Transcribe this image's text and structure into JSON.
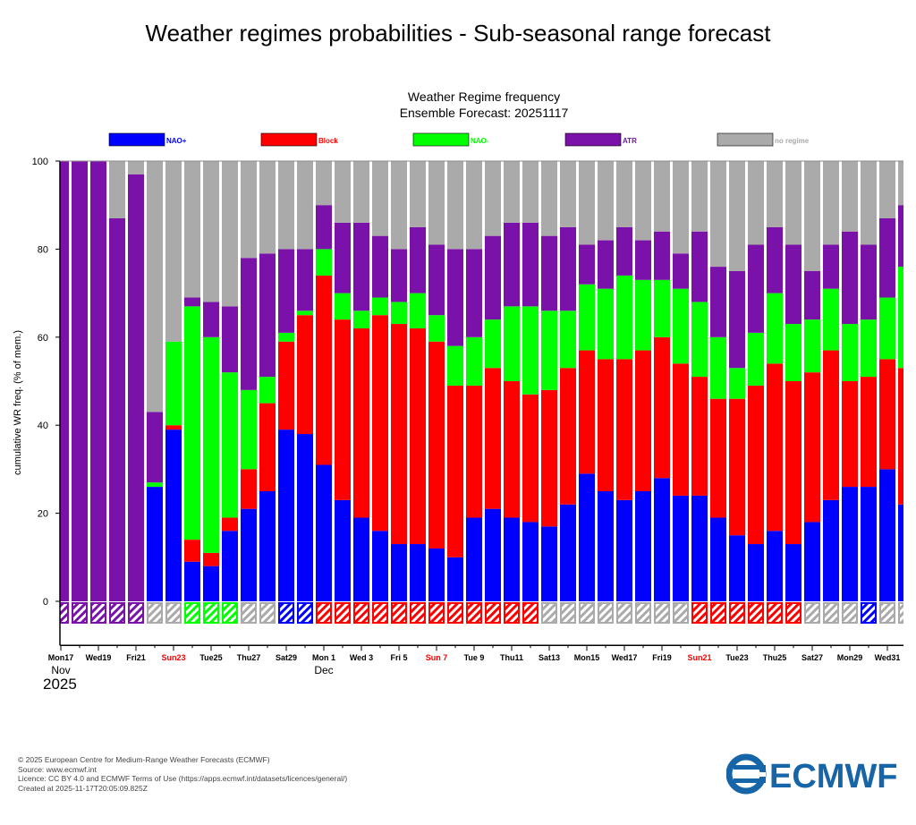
{
  "page_title": "Weather regimes probabilities - Sub-seasonal range forecast",
  "chart_data": {
    "type": "bar",
    "stacked": true,
    "title": "Weather Regime frequency",
    "subtitle": "Ensemble Forecast: 20251117",
    "ylabel": "cumulative WR freq. (% of mem.)",
    "xlabel": "",
    "ylim": [
      -10,
      100
    ],
    "yticks": [
      0,
      20,
      40,
      60,
      80,
      100
    ],
    "grid": false,
    "legend_position": "top",
    "x": [
      "2025-11-17",
      "2025-11-18",
      "2025-11-19",
      "2025-11-20",
      "2025-11-21",
      "2025-11-22",
      "2025-11-23",
      "2025-11-24",
      "2025-11-25",
      "2025-11-26",
      "2025-11-27",
      "2025-11-28",
      "2025-11-29",
      "2025-11-30",
      "2025-12-01",
      "2025-12-02",
      "2025-12-03",
      "2025-12-04",
      "2025-12-05",
      "2025-12-06",
      "2025-12-07",
      "2025-12-08",
      "2025-12-09",
      "2025-12-10",
      "2025-12-11",
      "2025-12-12",
      "2025-12-13",
      "2025-12-14",
      "2025-12-15",
      "2025-12-16",
      "2025-12-17",
      "2025-12-18",
      "2025-12-19",
      "2025-12-20",
      "2025-12-21",
      "2025-12-22",
      "2025-12-23",
      "2025-12-24",
      "2025-12-25",
      "2025-12-26",
      "2025-12-27",
      "2025-12-28",
      "2025-12-29",
      "2025-12-30",
      "2025-12-31",
      "2026-01-01"
    ],
    "series": [
      {
        "name": "NAO+",
        "color": "#0000ff",
        "values": [
          0,
          0,
          0,
          0,
          0,
          26,
          39,
          9,
          8,
          16,
          21,
          25,
          39,
          38,
          31,
          23,
          19,
          16,
          13,
          13,
          12,
          10,
          19,
          21,
          19,
          18,
          17,
          22,
          29,
          25,
          23,
          25,
          28,
          24,
          24,
          19,
          15,
          13,
          16,
          13,
          18,
          23,
          26,
          26,
          30,
          22
        ]
      },
      {
        "name": "Block",
        "color": "#ff0000",
        "values": [
          0,
          0,
          0,
          0,
          0,
          0,
          1,
          5,
          3,
          3,
          9,
          20,
          20,
          27,
          43,
          41,
          43,
          49,
          50,
          49,
          47,
          39,
          30,
          32,
          31,
          29,
          31,
          31,
          28,
          30,
          32,
          32,
          32,
          30,
          27,
          27,
          31,
          36,
          38,
          37,
          34,
          34,
          24,
          25,
          25,
          31
        ]
      },
      {
        "name": "NAO-",
        "color": "#00ff00",
        "values": [
          0,
          0,
          0,
          0,
          0,
          1,
          19,
          53,
          49,
          33,
          18,
          6,
          2,
          1,
          6,
          6,
          4,
          4,
          5,
          8,
          6,
          9,
          11,
          11,
          17,
          20,
          18,
          13,
          15,
          16,
          19,
          16,
          13,
          17,
          17,
          14,
          7,
          12,
          16,
          13,
          12,
          14,
          13,
          13,
          14,
          23
        ]
      },
      {
        "name": "ATR",
        "color": "#7a11a8",
        "values": [
          100,
          100,
          100,
          87,
          97,
          16,
          0,
          2,
          8,
          15,
          30,
          28,
          19,
          14,
          10,
          16,
          20,
          14,
          12,
          15,
          16,
          22,
          20,
          19,
          19,
          19,
          17,
          19,
          9,
          11,
          11,
          9,
          11,
          8,
          16,
          16,
          22,
          20,
          15,
          18,
          11,
          10,
          21,
          17,
          18,
          14
        ]
      },
      {
        "name": "no regime",
        "color": "#aaaaaa",
        "values": [
          0,
          0,
          0,
          13,
          3,
          57,
          41,
          31,
          32,
          33,
          22,
          21,
          20,
          20,
          10,
          14,
          14,
          17,
          20,
          15,
          19,
          20,
          20,
          17,
          14,
          14,
          17,
          15,
          19,
          18,
          15,
          18,
          16,
          21,
          16,
          24,
          25,
          19,
          15,
          19,
          25,
          19,
          16,
          19,
          13,
          10
        ]
      }
    ],
    "dominant_regime": [
      "ATR",
      "ATR",
      "ATR",
      "ATR",
      "ATR",
      "no regime",
      "no regime",
      "NAO-",
      "NAO-",
      "NAO-",
      "no regime",
      "no regime",
      "NAO+",
      "NAO+",
      "Block",
      "Block",
      "Block",
      "Block",
      "Block",
      "Block",
      "Block",
      "Block",
      "Block",
      "Block",
      "Block",
      "Block",
      "no regime",
      "no regime",
      "no regime",
      "no regime",
      "no regime",
      "no regime",
      "no regime",
      "no regime",
      "Block",
      "Block",
      "Block",
      "Block",
      "Block",
      "Block",
      "no regime",
      "no regime",
      "no regime",
      "NAO+",
      "no regime",
      "no regime"
    ],
    "xtick_labels": [
      {
        "day": 0,
        "label": "Mon17",
        "weekend": false
      },
      {
        "day": 2,
        "label": "Wed19",
        "weekend": false
      },
      {
        "day": 4,
        "label": "Fri21",
        "weekend": false
      },
      {
        "day": 6,
        "label": "Sun23",
        "weekend": true
      },
      {
        "day": 8,
        "label": "Tue25",
        "weekend": false
      },
      {
        "day": 10,
        "label": "Thu27",
        "weekend": false
      },
      {
        "day": 12,
        "label": "Sat29",
        "weekend": false
      },
      {
        "day": 14,
        "label": "Mon 1",
        "weekend": false
      },
      {
        "day": 16,
        "label": "Wed 3",
        "weekend": false
      },
      {
        "day": 18,
        "label": "Fri 5",
        "weekend": false
      },
      {
        "day": 20,
        "label": "Sun 7",
        "weekend": true
      },
      {
        "day": 22,
        "label": "Tue 9",
        "weekend": false
      },
      {
        "day": 24,
        "label": "Thu11",
        "weekend": false
      },
      {
        "day": 26,
        "label": "Sat13",
        "weekend": false
      },
      {
        "day": 28,
        "label": "Mon15",
        "weekend": false
      },
      {
        "day": 30,
        "label": "Wed17",
        "weekend": false
      },
      {
        "day": 32,
        "label": "Fri19",
        "weekend": false
      },
      {
        "day": 34,
        "label": "Sun21",
        "weekend": true
      },
      {
        "day": 36,
        "label": "Tue23",
        "weekend": false
      },
      {
        "day": 38,
        "label": "Thu25",
        "weekend": false
      },
      {
        "day": 40,
        "label": "Sat27",
        "weekend": false
      },
      {
        "day": 42,
        "label": "Mon29",
        "weekend": false
      },
      {
        "day": 44,
        "label": "Wed31",
        "weekend": false
      }
    ],
    "month_labels": [
      {
        "day": 0,
        "label": "Nov"
      },
      {
        "day": 14,
        "label": "Dec"
      }
    ],
    "year_label": "2025",
    "weekend_color": "#ff0000"
  },
  "footer": {
    "copyright": "© 2025 European Centre for Medium-Range Weather Forecasts (ECMWF)",
    "source": "Source: www.ecmwf.int",
    "licence": "Licence: CC BY 4.0 and ECMWF Terms of Use (https://apps.ecmwf.int/datasets/licences/general/)",
    "created": "Created at 2025-11-17T20:05:09.825Z"
  },
  "logo": {
    "text": "ECMWF",
    "color": "#1565a8"
  }
}
